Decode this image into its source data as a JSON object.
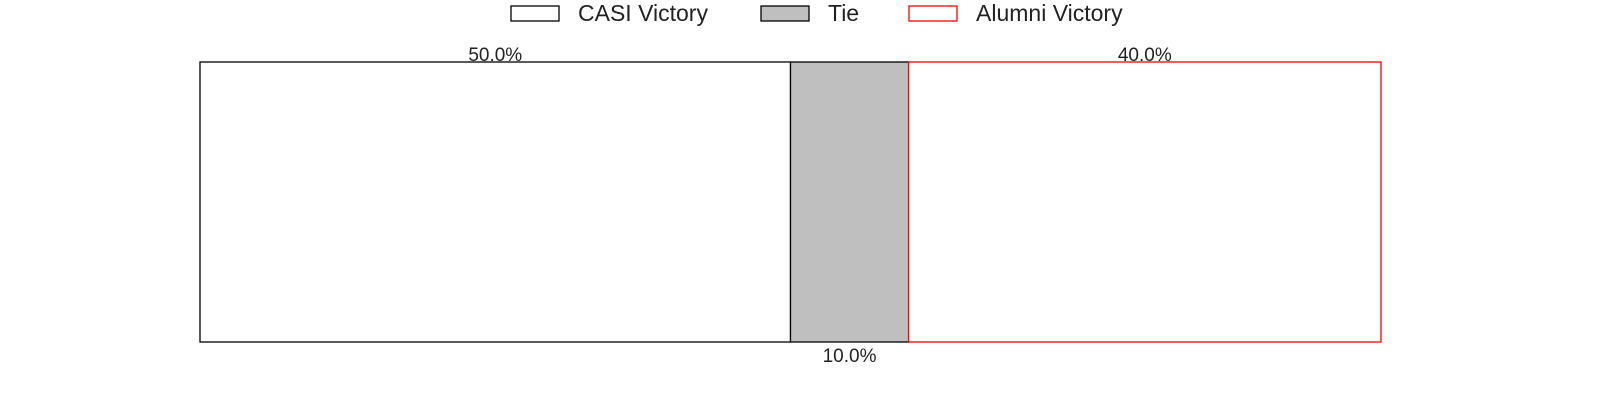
{
  "chart_data": {
    "type": "bar",
    "orientation": "horizontal",
    "stacked": true,
    "normalized_percent": true,
    "categories": [
      ""
    ],
    "series": [
      {
        "name": "CASI Victory",
        "values": [
          50.0
        ],
        "label": "50.0%",
        "fill": "#ffffff",
        "stroke": "#000000",
        "label_position": "top"
      },
      {
        "name": "Tie",
        "values": [
          10.0
        ],
        "label": "10.0%",
        "fill": "#bfbfbf",
        "stroke": "#000000",
        "label_position": "bottom"
      },
      {
        "name": "Alumni Victory",
        "values": [
          40.0
        ],
        "label": "40.0%",
        "fill": "#ffffff",
        "stroke": "#ff0000",
        "label_position": "top"
      }
    ],
    "xlim": [
      0,
      100
    ],
    "title": "",
    "xlabel": "",
    "ylabel": "",
    "grid": false,
    "axes_visible": false,
    "legend": {
      "position": "top-center",
      "orientation": "horizontal"
    }
  }
}
